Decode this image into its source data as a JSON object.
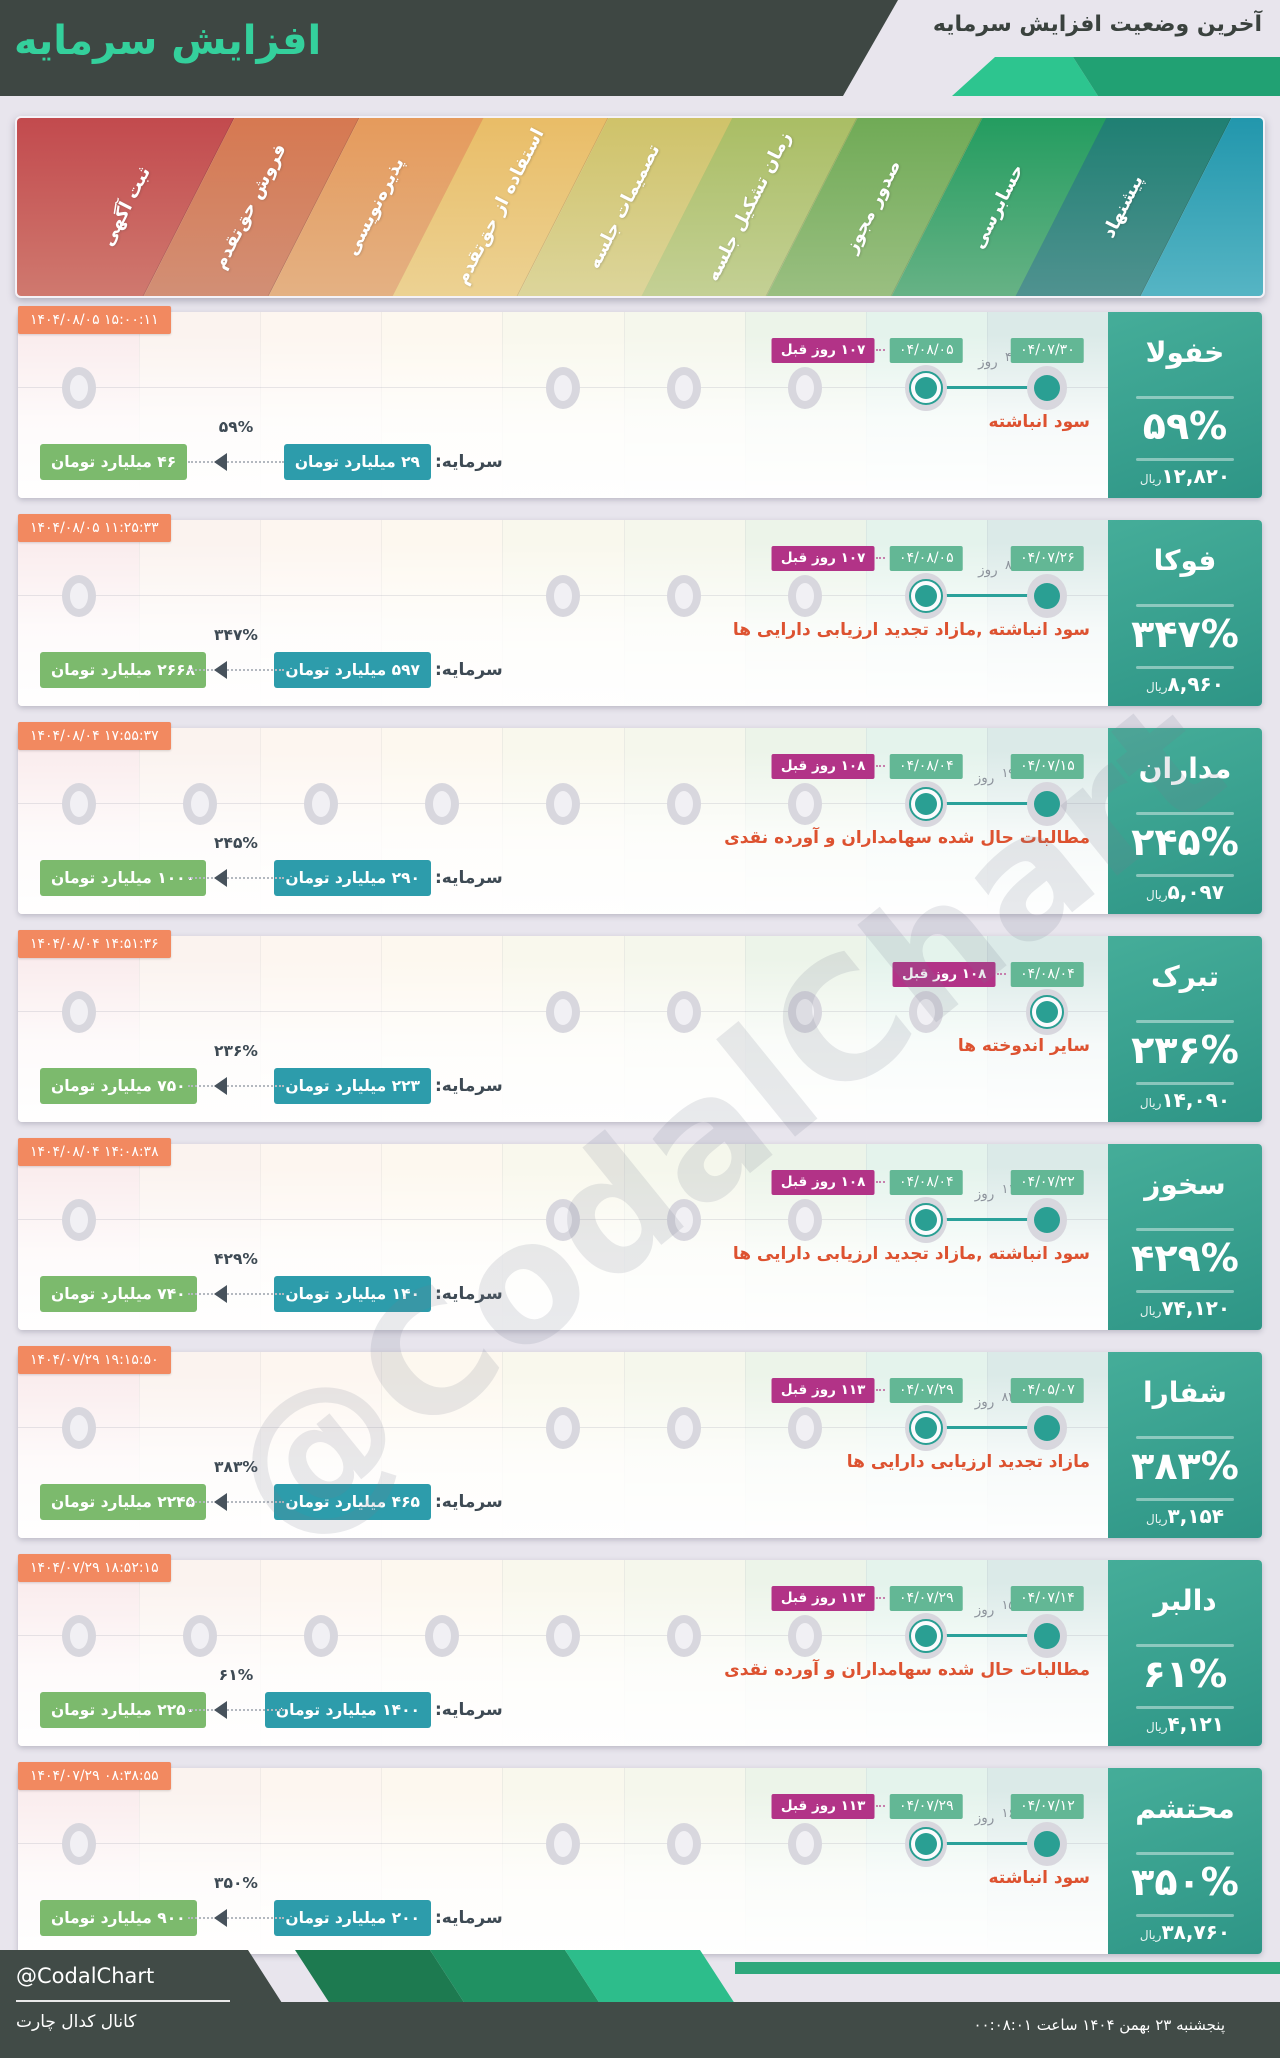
{
  "header": {
    "caption": "آخرین وضعیت افزایش سرمایه",
    "title": "افزایش سرمایه"
  },
  "stages": [
    {
      "label": "ثبت آگهی",
      "top": "#c2494d",
      "bottom": "#d07b70",
      "tint": "rgba(203,73,77,0.10)"
    },
    {
      "label": "فروش حق‌تقدم",
      "top": "#d67850",
      "bottom": "#d29077",
      "tint": "rgba(214,120,80,0.09)"
    },
    {
      "label": "پذیره‌نویسی",
      "top": "#e59a5b",
      "bottom": "#e4b285",
      "tint": "rgba(229,154,91,0.09)"
    },
    {
      "label": "استفاده از حق‌تقدم",
      "top": "#e9bc66",
      "bottom": "#ecd395",
      "tint": "rgba(233,188,102,0.10)"
    },
    {
      "label": "تصمیمات جلسه",
      "top": "#cfc268",
      "bottom": "#ddd69d",
      "tint": "rgba(207,194,104,0.12)"
    },
    {
      "label": "زمان تشکیل جلسه",
      "top": "#a9bd63",
      "bottom": "#c5d197",
      "tint": "rgba(169,189,99,0.12)"
    },
    {
      "label": "صدور مجوز",
      "top": "#6faa55",
      "bottom": "#9cc083",
      "tint": "rgba(111,170,85,0.13)"
    },
    {
      "label": "حسابرسی",
      "top": "#229c5f",
      "bottom": "#6ab387",
      "tint": "rgba(34,156,95,0.12)"
    },
    {
      "label": "پیشنهاد",
      "top": "#1e7f72",
      "bottom": "#529391",
      "tint": "rgba(30,127,114,0.16)"
    },
    {
      "label": "",
      "top": "#2196ac",
      "bottom": "#58b6c5",
      "tint": ""
    }
  ],
  "rows": [
    {
      "name": "خفولا",
      "percent": "۵۹%",
      "price": "۱۲,۸۲۰",
      "price_unit": "ریال",
      "timestamp": "۱۴۰۴/۰۸/۰۵ ۱۵:۰۰:۱۱",
      "days_ago": "۱۰۷ روز قبل",
      "date_new": "۰۴/۰۸/۰۵",
      "date_old": "۰۴/۰۷/۳۰",
      "gap_value": "۴",
      "gap_unit": "روز",
      "description": "سود انباشته",
      "capital_label": "سرمایه:",
      "capital_from": "۲۹ میلیارد تومان",
      "capital_to": "۴۶ میلیارد تومان",
      "capital_percent": "۵۹%",
      "gray_cols": [
        1,
        5,
        6,
        7
      ],
      "active_col": 8,
      "old_col": 9
    },
    {
      "name": "فوکا",
      "percent": "۳۴۷%",
      "price": "۸,۹۶۰",
      "price_unit": "ریال",
      "timestamp": "۱۴۰۴/۰۸/۰۵ ۱۱:۲۵:۳۳",
      "days_ago": "۱۰۷ روز قبل",
      "date_new": "۰۴/۰۸/۰۵",
      "date_old": "۰۴/۰۷/۲۶",
      "gap_value": "۸",
      "gap_unit": "روز",
      "description": "سود انباشته ,مازاد تجدید ارزیابی دارایی ها",
      "capital_label": "سرمایه:",
      "capital_from": "۵۹۷ میلیارد تومان",
      "capital_to": "۲۶۶۸ میلیارد تومان",
      "capital_percent": "۳۴۷%",
      "gray_cols": [
        1,
        5,
        6,
        7
      ],
      "active_col": 8,
      "old_col": 9
    },
    {
      "name": "مداران",
      "percent": "۲۴۵%",
      "price": "۵,۰۹۷",
      "price_unit": "ریال",
      "timestamp": "۱۴۰۴/۰۸/۰۴ ۱۷:۵۵:۳۷",
      "days_ago": "۱۰۸ روز قبل",
      "date_new": "۰۴/۰۸/۰۴",
      "date_old": "۰۴/۰۷/۱۵",
      "gap_value": "۱۹",
      "gap_unit": "روز",
      "description": "مطالبات حال شده سهامداران و آورده نقدی",
      "capital_label": "سرمایه:",
      "capital_from": "۲۹۰ میلیارد تومان",
      "capital_to": "۱۰۰۰ میلیارد تومان",
      "capital_percent": "۲۴۵%",
      "gray_cols": [
        1,
        2,
        3,
        4,
        5,
        6,
        7
      ],
      "active_col": 8,
      "old_col": 9
    },
    {
      "name": "تبرک",
      "percent": "۲۳۶%",
      "price": "۱۴,۰۹۰",
      "price_unit": "ریال",
      "timestamp": "۱۴۰۴/۰۸/۰۴ ۱۴:۵۱:۳۶",
      "days_ago": "۱۰۸ روز قبل",
      "date_new": "۰۴/۰۸/۰۴",
      "date_old": null,
      "gap_value": null,
      "gap_unit": "روز",
      "description": "سایر اندوخته ها",
      "capital_label": "سرمایه:",
      "capital_from": "۲۲۳ میلیارد تومان",
      "capital_to": "۷۵۰ میلیارد تومان",
      "capital_percent": "۲۳۶%",
      "gray_cols": [
        1,
        5,
        6,
        7,
        8
      ],
      "active_col": 9,
      "old_col": null
    },
    {
      "name": "سخوز",
      "percent": "۴۲۹%",
      "price": "۷۴,۱۲۰",
      "price_unit": "ریال",
      "timestamp": "۱۴۰۴/۰۸/۰۴ ۱۴:۰۸:۳۸",
      "days_ago": "۱۰۸ روز قبل",
      "date_new": "۰۴/۰۸/۰۴",
      "date_old": "۰۴/۰۷/۲۲",
      "gap_value": "۱۱",
      "gap_unit": "روز",
      "description": "سود انباشته ,مازاد تجدید ارزیابی دارایی ها",
      "capital_label": "سرمایه:",
      "capital_from": "۱۴۰ میلیارد تومان",
      "capital_to": "۷۴۰ میلیارد تومان",
      "capital_percent": "۴۲۹%",
      "gray_cols": [
        1,
        5,
        6,
        7
      ],
      "active_col": 8,
      "old_col": 9
    },
    {
      "name": "شفارا",
      "percent": "۳۸۳%",
      "price": "۳,۱۵۴",
      "price_unit": "ریال",
      "timestamp": "۱۴۰۴/۰۷/۲۹ ۱۹:۱۵:۵۰",
      "days_ago": "۱۱۳ روز قبل",
      "date_new": "۰۴/۰۷/۲۹",
      "date_old": "۰۴/۰۵/۰۷",
      "gap_value": "۸۴",
      "gap_unit": "روز",
      "description": "مازاد تجدید ارزیابی دارایی ها",
      "capital_label": "سرمایه:",
      "capital_from": "۴۶۵ میلیارد تومان",
      "capital_to": "۲۲۴۵ میلیارد تومان",
      "capital_percent": "۳۸۳%",
      "gray_cols": [
        1,
        5,
        6,
        7
      ],
      "active_col": 8,
      "old_col": 9
    },
    {
      "name": "دالبر",
      "percent": "۶۱%",
      "price": "۴,۱۲۱",
      "price_unit": "ریال",
      "timestamp": "۱۴۰۴/۰۷/۲۹ ۱۸:۵۲:۱۵",
      "days_ago": "۱۱۳ روز قبل",
      "date_new": "۰۴/۰۷/۲۹",
      "date_old": "۰۴/۰۷/۱۴",
      "gap_value": "۱۵",
      "gap_unit": "روز",
      "description": "مطالبات حال شده سهامداران و آورده نقدی",
      "capital_label": "سرمایه:",
      "capital_from": "۱۴۰۰ میلیارد تومان",
      "capital_to": "۲۲۵۰ میلیارد تومان",
      "capital_percent": "۶۱%",
      "gray_cols": [
        1,
        2,
        3,
        4,
        5,
        6,
        7
      ],
      "active_col": 8,
      "old_col": 9
    },
    {
      "name": "محتشم",
      "percent": "۳۵۰%",
      "price": "۳۸,۷۶۰",
      "price_unit": "ریال",
      "timestamp": "۱۴۰۴/۰۷/۲۹ ۰۸:۳۸:۵۵",
      "days_ago": "۱۱۳ روز قبل",
      "date_new": "۰۴/۰۷/۲۹",
      "date_old": "۰۴/۰۷/۱۲",
      "gap_value": "۱۶",
      "gap_unit": "روز",
      "description": "سود انباشته",
      "capital_label": "سرمایه:",
      "capital_from": "۲۰۰ میلیارد تومان",
      "capital_to": "۹۰۰ میلیارد تومان",
      "capital_percent": "۳۵۰%",
      "gray_cols": [
        1,
        5,
        6,
        7
      ],
      "active_col": 8,
      "old_col": 9
    }
  ],
  "watermark": "@CodalChart",
  "footer": {
    "brand": "@CodalChart",
    "channel": "کانال کدال چارت",
    "datetime": "پنجشنبه ۲۳ بهمن ۱۴۰۴ ساعت ۰۰:۰۸:۰۱",
    "green_colors": [
      "#1d7a50",
      "#209162",
      "#2dbd8b"
    ]
  },
  "colors": {
    "accent_green": "#34d09c",
    "panel_teal": "#2e9586",
    "timestamp_badge": "#f28960",
    "days_ago_badge": "#b23387",
    "date_badge": "#63b795",
    "description_red": "#dd5230",
    "capital_current_badge": "#2d9cab",
    "capital_new_badge": "#7cba6d",
    "footer_dark": "#414b47"
  }
}
